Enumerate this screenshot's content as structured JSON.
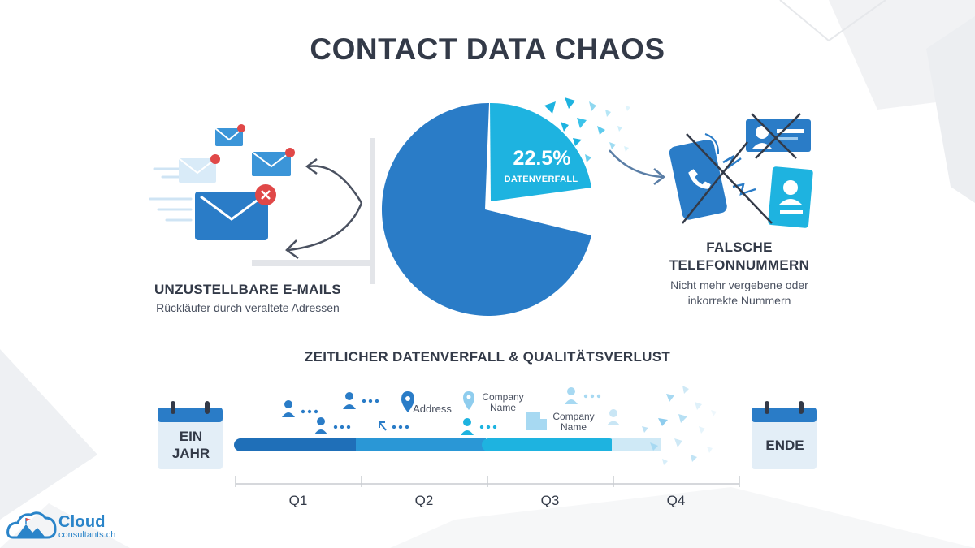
{
  "title": "CONTACT DATA CHAOS",
  "pie": {
    "percent": "22.5%",
    "label": "DATENVERFALL",
    "value": 22.5
  },
  "email": {
    "title": "UNZUSTELLBARE E-MAILS",
    "description": "Rückläufer durch veraltete Adressen",
    "icon": "envelope-error-icon"
  },
  "phone": {
    "title_line1": "FALSCHE",
    "title_line2": "TELEFONNUMMERN",
    "description_line1": "Nicht mehr vergebene oder",
    "description_line2": "inkorrekte Nummern",
    "icon": "phone-crossed-icon"
  },
  "timeline": {
    "title": "ZEITLICHER DATENVERFALL & QUALITÄTSVERLUST",
    "start_line1": "EIN",
    "start_line2": "JAHR",
    "end": "ENDE",
    "quarters": [
      "Q1",
      "Q2",
      "Q3",
      "Q4"
    ],
    "items": {
      "address": "Address",
      "company1_line1": "Company",
      "company1_line2": "Name",
      "company2_line1": "Company",
      "company2_line2": "Name"
    }
  },
  "logo": {
    "name": "Cloud",
    "domain": "consultants.ch"
  },
  "colors": {
    "pie_main": "#2a7cc7",
    "pie_slice": "#1eb3e0",
    "dark_text": "#333a48",
    "error_red": "#e04848"
  }
}
